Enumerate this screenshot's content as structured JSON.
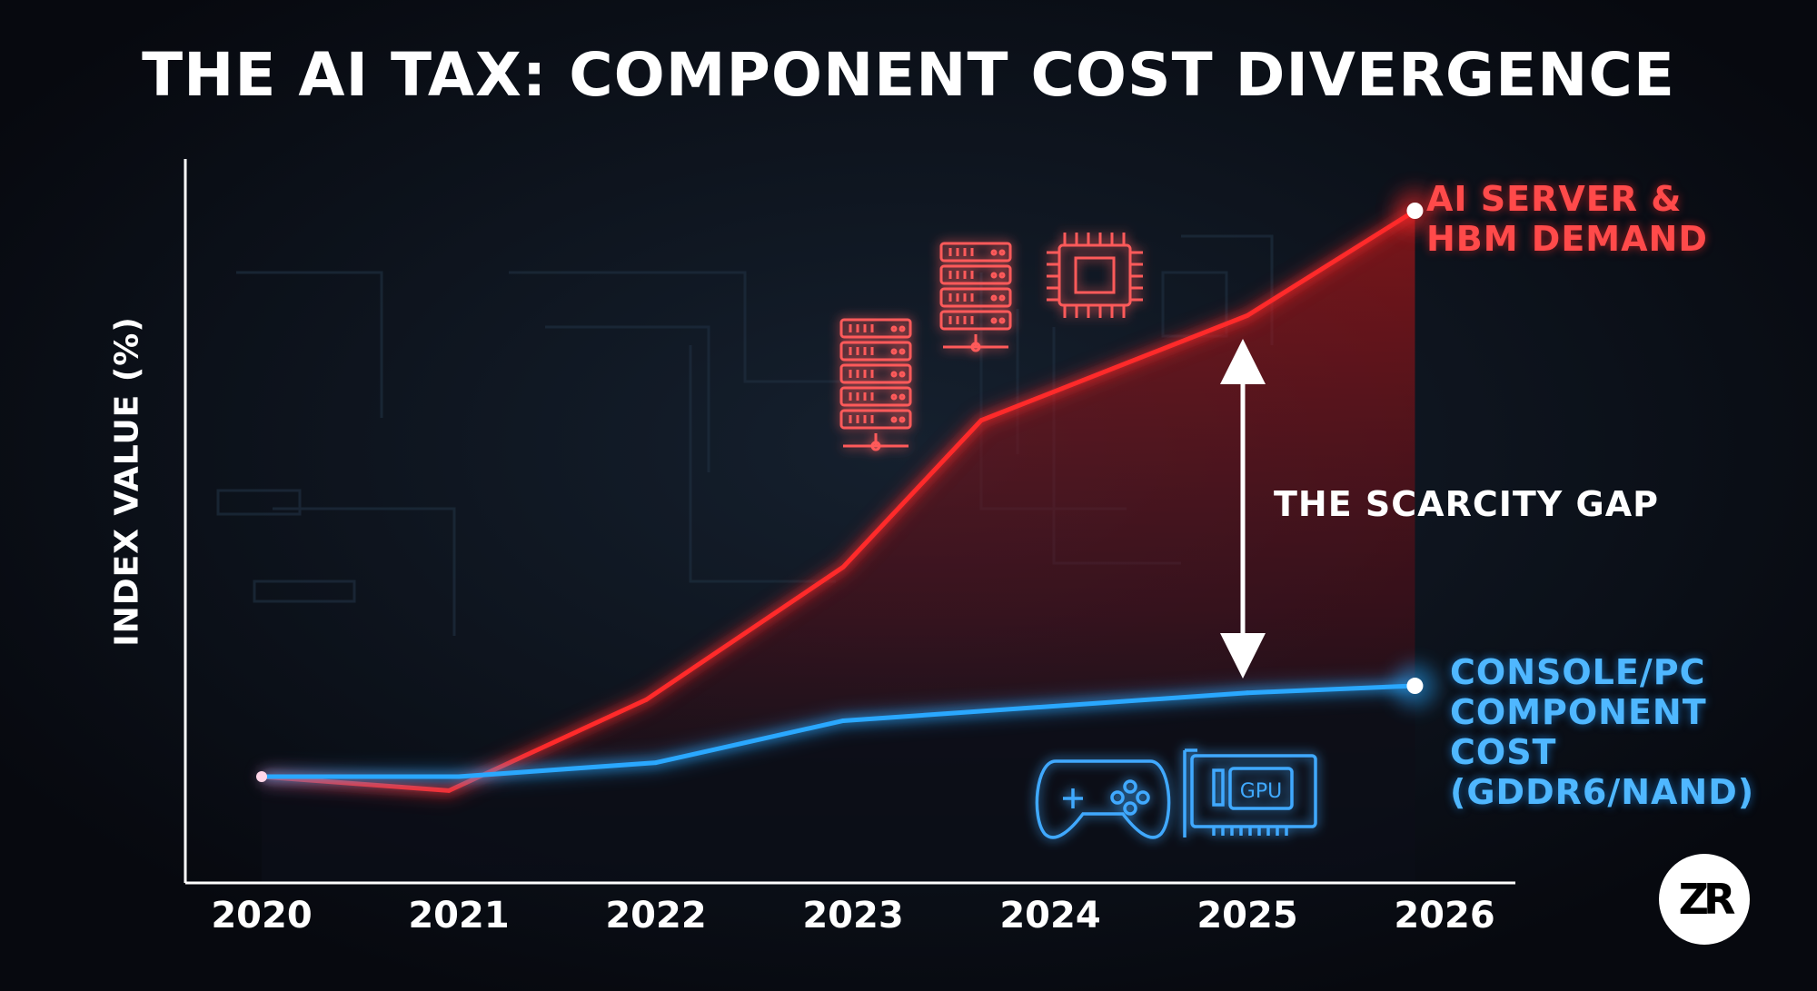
{
  "colors": {
    "background": "#0a0d14",
    "ai_series": "#ff2a2a",
    "console_series": "#2aa8ff",
    "axis": "#ffffff"
  },
  "chart_data": {
    "type": "line",
    "title": "THE AI TAX: COMPONENT COST DIVERGENCE",
    "xlabel": "",
    "ylabel": "INDEX VALUE (%)",
    "categories": [
      "2020",
      "2021",
      "2022",
      "2023",
      "2024",
      "2025",
      "2026"
    ],
    "x": [
      2020,
      2020.95,
      2021.95,
      2022.95,
      2023.65,
      2025,
      2025.85
    ],
    "ylim": [
      0,
      100
    ],
    "grid": false,
    "series": [
      {
        "name": "AI SERVER & HBM DEMAND",
        "color": "#ff2a2a",
        "x": [
          2020,
          2020.95,
          2021.95,
          2022.95,
          2023.65,
          2025,
          2025.85
        ],
        "values": [
          14,
          12,
          25,
          44,
          65,
          80,
          95
        ]
      },
      {
        "name": "CONSOLE/PC COMPONENT COST (GDDR6/NAND)",
        "color": "#2aa8ff",
        "x": [
          2020,
          2021,
          2022,
          2022.95,
          2025,
          2025.85
        ],
        "values": [
          14,
          14,
          16,
          22,
          26,
          27
        ]
      }
    ],
    "annotations": [
      {
        "text": "THE SCARCITY GAP",
        "x": 2025,
        "y_from": 28,
        "y_to": 78,
        "type": "double-arrow"
      }
    ],
    "series_labels": {
      "ai": [
        "AI SERVER &",
        "HBM DEMAND"
      ],
      "console": [
        "CONSOLE/PC",
        "COMPONENT COST",
        "(GDDR6/NAND)"
      ]
    }
  },
  "icons": {
    "server_rack_1": "server-rack-icon",
    "server_rack_2": "server-rack-icon",
    "chip": "cpu-chip-icon",
    "gamepad": "gamepad-icon",
    "gpu": "gpu-card-icon",
    "gpu_text": "GPU",
    "logo": "ZR"
  }
}
